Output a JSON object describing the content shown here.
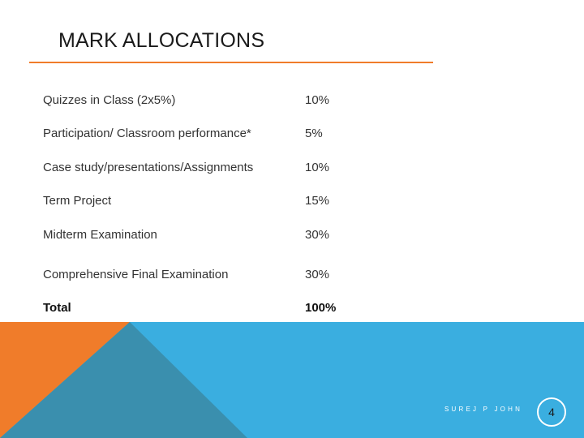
{
  "title": "MARK ALLOCATIONS",
  "rows": [
    {
      "label": "Quizzes in Class (2x5%)",
      "value": "10%"
    },
    {
      "label": "Participation/ Classroom performance*",
      "value": "5%"
    },
    {
      "label": "Case study/presentations/Assignments",
      "value": "10%"
    },
    {
      "label": "Term Project",
      "value": "15%"
    },
    {
      "label": "Midterm Examination",
      "value": "30%"
    },
    {
      "label": "Comprehensive Final Examination",
      "value": "30%"
    },
    {
      "label": "Total",
      "value": "100%"
    }
  ],
  "footer": {
    "author": "SUREJ P JOHN",
    "page_number": "4"
  },
  "colors": {
    "accent_orange": "#f07c2a",
    "footer_blue": "#3aaee0",
    "footer_teal": "#3a8fae"
  }
}
